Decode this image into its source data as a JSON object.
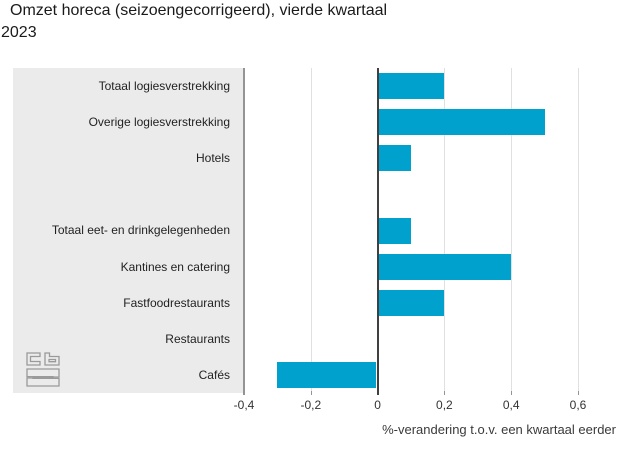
{
  "title": {
    "line1": "Omzet horeca (seizoengecorrigeerd), vierde kwartaal",
    "line2": "2023"
  },
  "logo": {
    "name": "cbs-logo"
  },
  "colors": {
    "bar": "#00a1cd",
    "panel_bg": "#ebebeb",
    "gridline": "#e0e0e0",
    "axis_line": "#949494",
    "zero_line": "#404040",
    "logo_stroke": "#9a9a9a"
  },
  "chart_data": {
    "type": "bar",
    "orientation": "horizontal",
    "title": "Omzet horeca (seizoengecorrigeerd), vierde kwartaal 2023",
    "categories": [
      "Totaal logiesverstrekking",
      "Overige logiesverstrekking",
      "Hotels",
      "",
      "Totaal eet- en drinkgelegenheden",
      "Kantines en catering",
      "Fastfoodrestaurants",
      "Restaurants",
      "Cafés"
    ],
    "values": [
      0.2,
      0.5,
      0.1,
      null,
      0.1,
      0.4,
      0.2,
      0,
      -0.3
    ],
    "xlabel": "%-verandering t.o.v. een kwartaal eerder",
    "ylabel": "",
    "xlim": [
      -0.4,
      0.6
    ],
    "xticks": [
      -0.4,
      -0.2,
      0,
      0.2,
      0.4,
      0.6
    ],
    "xtick_labels": [
      "-0,4",
      "-0,2",
      "0",
      "0,2",
      "0,4",
      "0,6"
    ],
    "grid": true,
    "legend": false
  }
}
